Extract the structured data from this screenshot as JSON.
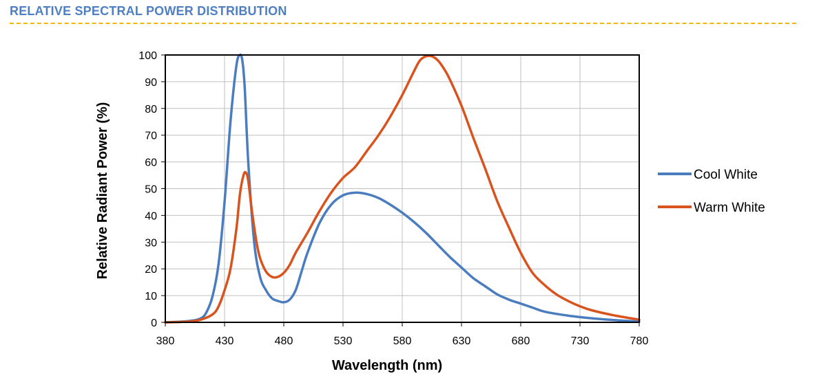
{
  "header": {
    "title": "RELATIVE SPECTRAL POWER DISTRIBUTION"
  },
  "colors": {
    "title": "#4f7fc3",
    "rule": "#f2b705",
    "cool_white": "#4a7cc0",
    "warm_white": "#d9531e",
    "grid": "#bfbfbf"
  },
  "chart_data": {
    "type": "line",
    "xlabel": "Wavelength (nm)",
    "ylabel": "Relative Radiant Power (%)",
    "xlim": [
      380,
      780
    ],
    "ylim": [
      0,
      100
    ],
    "xticks": [
      380,
      430,
      480,
      530,
      580,
      630,
      680,
      730,
      780
    ],
    "yticks": [
      0,
      10,
      20,
      30,
      40,
      50,
      60,
      70,
      80,
      90,
      100
    ],
    "grid": true,
    "legend_position": "right",
    "series": [
      {
        "name": "Cool White",
        "color": "#4a7cc0",
        "x": [
          380,
          400,
          410,
          415,
          420,
          425,
          430,
          435,
          440,
          443,
          445,
          447,
          450,
          455,
          460,
          465,
          470,
          475,
          480,
          485,
          490,
          495,
          500,
          510,
          520,
          530,
          540,
          550,
          560,
          570,
          580,
          590,
          600,
          610,
          620,
          630,
          640,
          650,
          660,
          670,
          680,
          690,
          700,
          720,
          740,
          760,
          780
        ],
        "y": [
          0,
          0.5,
          1.5,
          4,
          10,
          22,
          45,
          75,
          96,
          100,
          98,
          88,
          60,
          30,
          17,
          12,
          9,
          8,
          7.5,
          8.5,
          12,
          19,
          26,
          37,
          44,
          47.5,
          48.5,
          48,
          46.5,
          44,
          41,
          37.5,
          33.5,
          29,
          24.5,
          20.5,
          16.5,
          13.5,
          10.5,
          8.5,
          7,
          5.5,
          4,
          2.5,
          1.5,
          0.8,
          0.3
        ]
      },
      {
        "name": "Warm White",
        "color": "#d9531e",
        "x": [
          380,
          400,
          410,
          420,
          425,
          430,
          435,
          440,
          443,
          446,
          448,
          450,
          453,
          457,
          460,
          465,
          470,
          475,
          480,
          485,
          490,
          500,
          510,
          520,
          530,
          540,
          550,
          560,
          570,
          580,
          590,
          595,
          600,
          605,
          610,
          615,
          620,
          630,
          640,
          650,
          660,
          670,
          680,
          690,
          700,
          710,
          720,
          730,
          740,
          760,
          780
        ],
        "y": [
          0,
          0.3,
          1,
          3,
          6,
          12,
          20,
          35,
          48,
          55,
          56,
          53,
          42,
          30,
          24,
          19,
          17,
          17,
          18.5,
          21.5,
          26,
          33.5,
          41.5,
          48.5,
          54,
          58,
          64,
          70,
          77,
          85,
          94,
          98,
          99.5,
          99.5,
          98,
          95,
          91,
          81,
          69,
          57.5,
          45.5,
          35.5,
          26,
          18.5,
          14,
          10.5,
          8,
          6,
          4.5,
          2.5,
          1
        ]
      }
    ]
  }
}
